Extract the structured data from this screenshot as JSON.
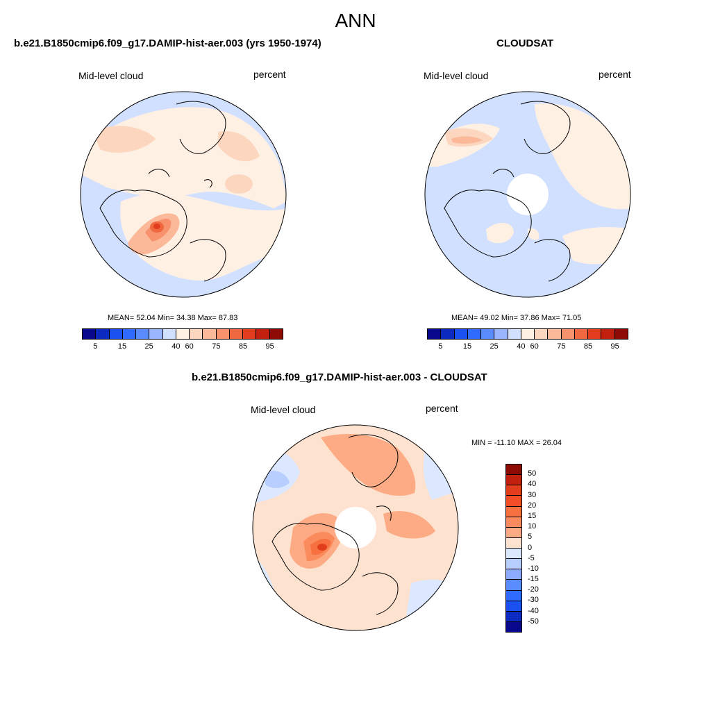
{
  "main_title": "ANN",
  "panels": {
    "model": {
      "title": "b.e21.B1850cmip6.f09_g17.DAMIP-hist-aer.003 (yrs 1950-1974)",
      "left_label": "Mid-level cloud",
      "right_label": "percent",
      "stats": "MEAN=  52.04  Min=  34.38  Max=  87.83"
    },
    "obs": {
      "title": "CLOUDSAT",
      "left_label": "Mid-level cloud",
      "right_label": "percent",
      "stats": "MEAN=  49.02  Min=  37.86  Max=  71.05"
    },
    "diff": {
      "title": "b.e21.B1850cmip6.f09_g17.DAMIP-hist-aer.003 - CLOUDSAT",
      "left_label": "Mid-level cloud",
      "right_label": "percent",
      "minmax": "MIN = -11.10 MAX =  26.04"
    }
  },
  "colorbar_abs": {
    "ticks": [
      "5",
      "15",
      "25",
      "40",
      "60",
      "75",
      "85",
      "95"
    ],
    "colors": [
      "#08088c",
      "#0c2ac0",
      "#1a4ff0",
      "#2f6bff",
      "#5a8cff",
      "#9ab6ff",
      "#d2e0ff",
      "#fff0e4",
      "#fdd6c0",
      "#fbb99a",
      "#f7926d",
      "#f0683f",
      "#e23d1c",
      "#c2200f",
      "#8e0a05"
    ]
  },
  "colorbar_diff": {
    "ticks": [
      "50",
      "40",
      "30",
      "20",
      "15",
      "10",
      "5",
      "0",
      "-5",
      "-10",
      "-15",
      "-20",
      "-30",
      "-40",
      "-50"
    ],
    "colors": [
      "#8e0a05",
      "#c2200f",
      "#e23d1c",
      "#f24d26",
      "#f7703f",
      "#fa8b5c",
      "#fcab84",
      "#fde2d0",
      "#dce8ff",
      "#b8ceff",
      "#8cadff",
      "#5a8cff",
      "#2f6bff",
      "#1a4ff0",
      "#0c2ac0",
      "#08088c"
    ]
  },
  "chart_data": [
    {
      "type": "heatmap",
      "title": "b.e21.B1850cmip6.f09_g17.DAMIP-hist-aer.003 (yrs 1950-1974)",
      "variable": "Mid-level cloud",
      "units": "percent",
      "projection": "north-polar-stereographic",
      "mean": 52.04,
      "min": 34.38,
      "max": 87.83,
      "levels": [
        5,
        10,
        15,
        20,
        25,
        30,
        40,
        50,
        60,
        65,
        70,
        75,
        80,
        85,
        90,
        95
      ]
    },
    {
      "type": "heatmap",
      "title": "CLOUDSAT",
      "variable": "Mid-level cloud",
      "units": "percent",
      "projection": "north-polar-stereographic",
      "mean": 49.02,
      "min": 37.86,
      "max": 71.05,
      "levels": [
        5,
        10,
        15,
        20,
        25,
        30,
        40,
        50,
        60,
        65,
        70,
        75,
        80,
        85,
        90,
        95
      ]
    },
    {
      "type": "heatmap",
      "title": "b.e21.B1850cmip6.f09_g17.DAMIP-hist-aer.003 - CLOUDSAT",
      "variable": "Mid-level cloud",
      "units": "percent",
      "projection": "north-polar-stereographic",
      "min": -11.1,
      "max": 26.04,
      "levels": [
        -50,
        -40,
        -30,
        -20,
        -15,
        -10,
        -5,
        0,
        5,
        10,
        15,
        20,
        30,
        40,
        50
      ]
    }
  ]
}
